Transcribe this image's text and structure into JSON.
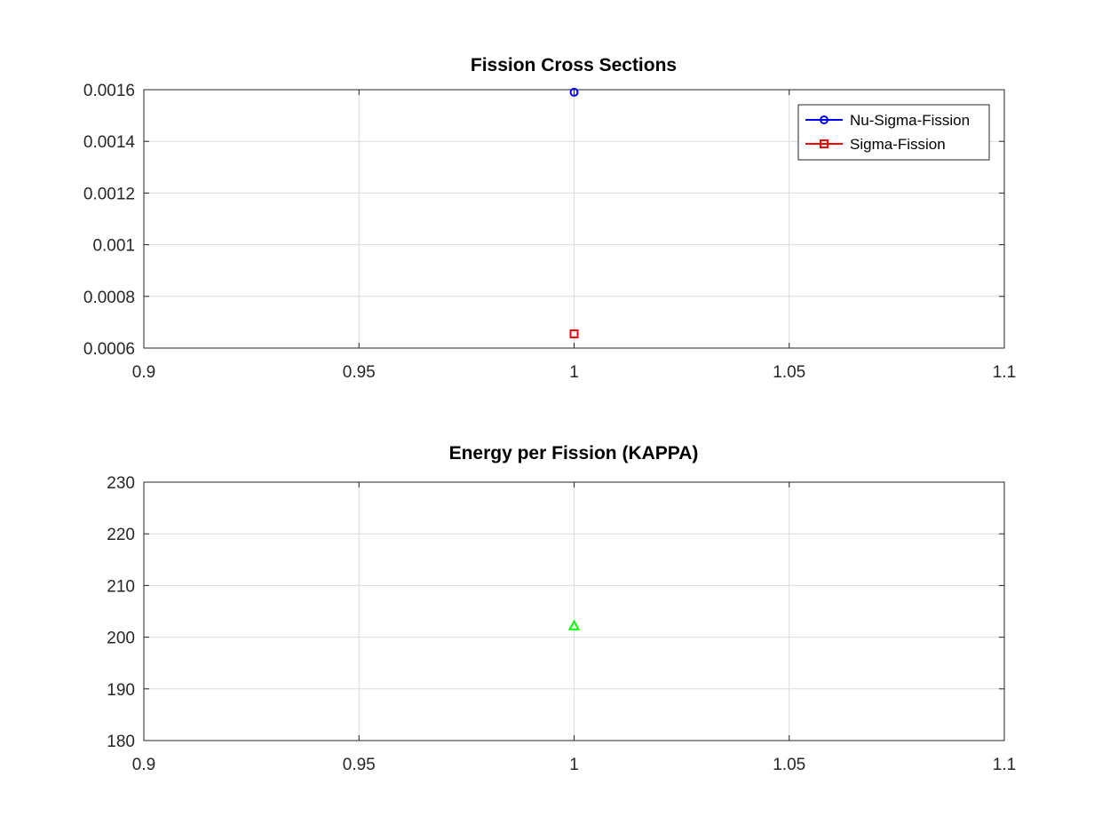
{
  "chart_data": [
    {
      "type": "scatter",
      "title": "Fission Cross Sections",
      "xlabel": "",
      "ylabel": "",
      "xlim": [
        0.9,
        1.1
      ],
      "ylim": [
        0.0006,
        0.0016
      ],
      "x_ticks": [
        0.9,
        0.95,
        1,
        1.05,
        1.1
      ],
      "x_tick_labels": [
        "0.9",
        "0.95",
        "1",
        "1.05",
        "1.1"
      ],
      "y_ticks": [
        0.0006,
        0.0008,
        0.001,
        0.0012,
        0.0014,
        0.0016
      ],
      "y_tick_labels": [
        "0.0006",
        "0.0008",
        "0.001",
        "0.0012",
        "0.0014",
        "0.0016"
      ],
      "grid": true,
      "legend_position": "top-right",
      "series": [
        {
          "name": "Nu-Sigma-Fission",
          "x": [
            1
          ],
          "y": [
            0.00159
          ],
          "marker": "circle",
          "color": "#0000ff"
        },
        {
          "name": "Sigma-Fission",
          "x": [
            1
          ],
          "y": [
            0.000655
          ],
          "marker": "square",
          "color": "#ff0000"
        }
      ]
    },
    {
      "type": "scatter",
      "title": "Energy per Fission (KAPPA)",
      "xlabel": "",
      "ylabel": "",
      "xlim": [
        0.9,
        1.1
      ],
      "ylim": [
        180,
        230
      ],
      "x_ticks": [
        0.9,
        0.95,
        1,
        1.05,
        1.1
      ],
      "x_tick_labels": [
        "0.9",
        "0.95",
        "1",
        "1.05",
        "1.1"
      ],
      "y_ticks": [
        180,
        190,
        200,
        210,
        220,
        230
      ],
      "y_tick_labels": [
        "180",
        "190",
        "200",
        "210",
        "220",
        "230"
      ],
      "grid": true,
      "legend_position": "none",
      "series": [
        {
          "x": [
            1
          ],
          "y": [
            202.2
          ],
          "marker": "triangle",
          "color": "#00ff00"
        }
      ]
    }
  ]
}
